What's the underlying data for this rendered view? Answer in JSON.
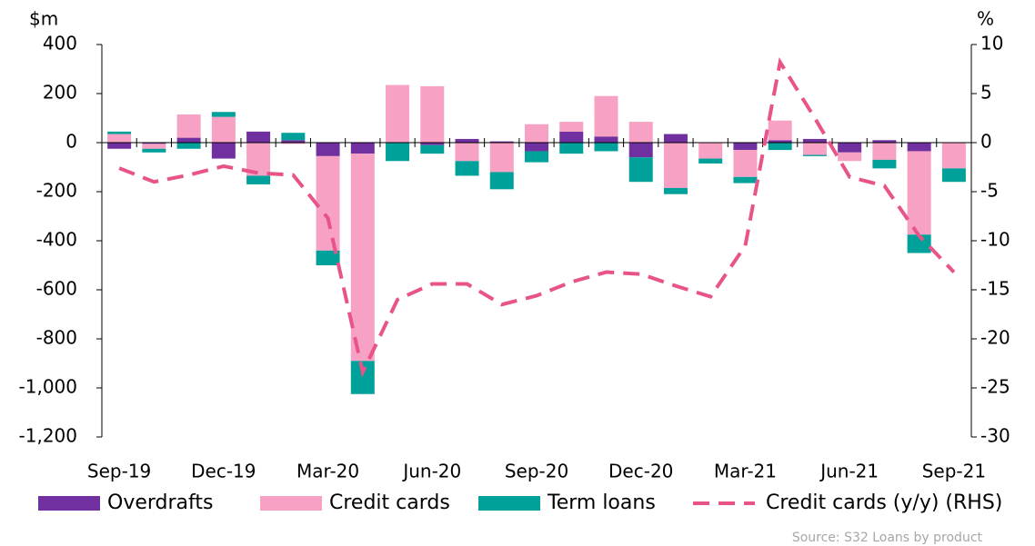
{
  "chart_data": {
    "type": "bar",
    "stacked": true,
    "y_label": "$m",
    "y2_label": "%",
    "source": "Source: S32 Loans by product",
    "categories": [
      "Sep-19",
      null,
      null,
      "Dec-19",
      null,
      null,
      "Mar-20",
      null,
      null,
      "Jun-20",
      null,
      null,
      "Sep-20",
      null,
      null,
      "Dec-20",
      null,
      null,
      "Mar-21",
      null,
      null,
      "Jun-21",
      null,
      null,
      "Sep-21"
    ],
    "series": [
      {
        "name": "Overdrafts",
        "color": "#7030a0",
        "values": [
          -25,
          -5,
          20,
          -65,
          45,
          10,
          -55,
          -45,
          0,
          -10,
          15,
          5,
          -35,
          45,
          25,
          -60,
          35,
          0,
          -30,
          10,
          15,
          -40,
          10,
          -35,
          0
        ]
      },
      {
        "name": "Credit cards",
        "color": "#f7a1c4",
        "values": [
          35,
          -20,
          95,
          105,
          -135,
          -5,
          -385,
          -845,
          235,
          230,
          -75,
          -120,
          75,
          40,
          165,
          85,
          -185,
          -65,
          -110,
          80,
          -50,
          -35,
          -70,
          -340,
          -105
        ]
      },
      {
        "name": "Term loans",
        "color": "#00a19a",
        "values": [
          10,
          -15,
          -25,
          20,
          -35,
          30,
          -60,
          -135,
          -75,
          -35,
          -60,
          -70,
          -45,
          -45,
          -35,
          -100,
          -25,
          -20,
          -25,
          -30,
          -5,
          0,
          -35,
          -75,
          -55
        ]
      },
      {
        "name": "Credit cards (y/y) (RHS)",
        "color": "#e8548a",
        "type": "line",
        "axis": "y2",
        "dashed": true,
        "values": [
          -2.6,
          -4,
          -3.3,
          -2.4,
          -3.1,
          -3.3,
          -7.7,
          -23.4,
          -16,
          -14.4,
          -14.4,
          -16.5,
          -15.6,
          -14.2,
          -13.2,
          -13.4,
          -14.6,
          -15.7,
          -10.5,
          8.2,
          2.5,
          -3.5,
          -4.4,
          -9.5,
          -13.2
        ]
      }
    ],
    "ylim": [
      -1200,
      400
    ],
    "yticks": [
      {
        "value": -1200,
        "label": "-1,200"
      },
      {
        "value": -1000,
        "label": "-1,000"
      },
      -800,
      -600,
      -400,
      -200,
      0,
      200,
      400
    ],
    "y2lim": [
      -30,
      10
    ],
    "y2ticks": [
      -30,
      -25,
      -20,
      -15,
      -10,
      -5,
      0,
      5,
      10
    ],
    "legend": "bottom"
  }
}
